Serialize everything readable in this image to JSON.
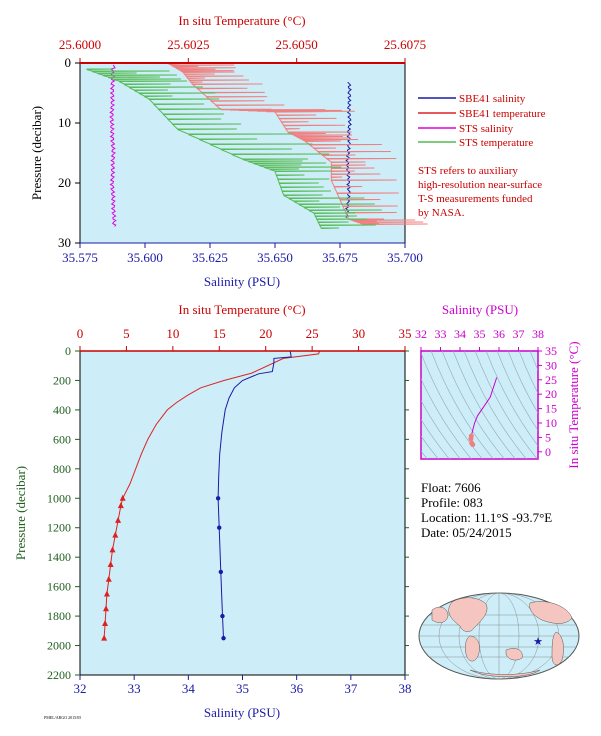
{
  "chart_data": [
    {
      "id": "top",
      "type": "line",
      "top_axis": {
        "label": "In situ Temperature (°C)",
        "ticks": [
          "25.6000",
          "25.6025",
          "25.6050",
          "25.6075"
        ],
        "range": [
          25.6,
          25.6075
        ]
      },
      "bottom_axis": {
        "label": "Salinity (PSU)",
        "ticks": [
          "35.575",
          "35.600",
          "35.625",
          "35.650",
          "35.675",
          "35.700"
        ],
        "range": [
          35.575,
          35.7
        ]
      },
      "left_axis": {
        "label": "Pressure (decibar)",
        "ticks": [
          "0",
          "10",
          "20",
          "30"
        ],
        "range": [
          0,
          30
        ],
        "inverted": true
      },
      "legend": {
        "items": [
          {
            "label": "SBE41 salinity",
            "color": "#1a1aa6"
          },
          {
            "label": "SBE41 temperature",
            "color": "#dd2222"
          },
          {
            "label": "STS salinity",
            "color": "#dd00dd"
          },
          {
            "label": "STS temperature",
            "color": "#55bb55"
          }
        ],
        "note": [
          "STS refers to auxiliary",
          "high-resolution near-surface",
          "T-S measurements funded",
          "by NASA."
        ]
      },
      "series": [
        {
          "name": "SBE41 salinity",
          "x_axis": "salinity",
          "points": [
            [
              35.6785,
              3.2
            ],
            [
              35.6787,
              5
            ],
            [
              35.6784,
              7.5
            ],
            [
              35.6788,
              10
            ],
            [
              35.6782,
              11.5
            ],
            [
              35.6786,
              13
            ],
            [
              35.6781,
              15
            ],
            [
              35.6779,
              17
            ],
            [
              35.6782,
              19
            ],
            [
              35.6784,
              21
            ],
            [
              35.6781,
              23
            ],
            [
              35.6777,
              25
            ],
            [
              35.6775,
              26
            ]
          ]
        },
        {
          "name": "SBE41 temperature",
          "x_axis": "temperature",
          "points": [
            [
              25.60205,
              0.1
            ],
            [
              25.60238,
              1.5
            ],
            [
              25.6026,
              3.5
            ],
            [
              25.60325,
              7.7
            ],
            [
              25.6045,
              8.1
            ],
            [
              25.6048,
              11.5
            ],
            [
              25.6052,
              13
            ],
            [
              25.6058,
              16.5
            ],
            [
              25.6058,
              19.5
            ],
            [
              25.6062,
              26
            ],
            [
              25.6066,
              27
            ]
          ]
        },
        {
          "name": "STS salinity",
          "x_axis": "salinity",
          "points": [
            [
              35.5885,
              0.3
            ],
            [
              35.5875,
              1
            ],
            [
              35.5875,
              5
            ],
            [
              35.5872,
              10
            ],
            [
              35.5878,
              15
            ],
            [
              35.5874,
              20
            ],
            [
              35.5879,
              24
            ],
            [
              35.5882,
              27.5
            ]
          ]
        },
        {
          "name": "STS temperature",
          "x_axis": "temperature",
          "points": [
            [
              25.60015,
              1
            ],
            [
              25.6009,
              3
            ],
            [
              25.6016,
              6
            ],
            [
              25.60225,
              11
            ],
            [
              25.60375,
              16
            ],
            [
              25.6045,
              18
            ],
            [
              25.6047,
              22
            ],
            [
              25.6054,
              25
            ],
            [
              25.6056,
              28
            ]
          ]
        }
      ]
    },
    {
      "id": "main",
      "type": "line",
      "top_axis": {
        "label": "In situ Temperature (°C)",
        "ticks": [
          "0",
          "5",
          "10",
          "15",
          "20",
          "25",
          "30",
          "35"
        ],
        "range": [
          0,
          35
        ]
      },
      "bottom_axis": {
        "label": "Salinity (PSU)",
        "ticks": [
          "32",
          "33",
          "34",
          "35",
          "36",
          "37",
          "38"
        ],
        "range": [
          32,
          38
        ]
      },
      "left_axis": {
        "label": "Pressure (decibar)",
        "ticks": [
          "0",
          "200",
          "400",
          "600",
          "800",
          "1000",
          "1200",
          "1400",
          "1600",
          "1800",
          "2000",
          "2200"
        ],
        "range": [
          0,
          2200
        ],
        "inverted": true
      },
      "series": [
        {
          "name": "Temperature",
          "x_axis": "temperature",
          "points": [
            [
              25.8,
              0
            ],
            [
              25.7,
              20
            ],
            [
              21.9,
              50
            ],
            [
              18.5,
              150
            ],
            [
              15.5,
              200
            ],
            [
              13,
              250
            ],
            [
              11.6,
              300
            ],
            [
              10.4,
              350
            ],
            [
              9.4,
              400
            ],
            [
              8.2,
              500
            ],
            [
              7.3,
              600
            ],
            [
              6.6,
              700
            ],
            [
              6,
              800
            ],
            [
              5.4,
              900
            ],
            [
              4.6,
              1000
            ],
            [
              4.4,
              1050
            ],
            [
              4.1,
              1150
            ],
            [
              3.8,
              1250
            ],
            [
              3.5,
              1350
            ],
            [
              3.3,
              1450
            ],
            [
              3.1,
              1550
            ],
            [
              2.9,
              1650
            ],
            [
              2.8,
              1750
            ],
            [
              2.7,
              1850
            ],
            [
              2.6,
              1950
            ]
          ],
          "markers_from_pressure": 1000
        },
        {
          "name": "Salinity",
          "x_axis": "salinity",
          "points": [
            [
              35.88,
              0
            ],
            [
              35.9,
              40
            ],
            [
              35.58,
              50
            ],
            [
              35.58,
              80
            ],
            [
              35.55,
              140
            ],
            [
              35.3,
              155
            ],
            [
              35.0,
              200
            ],
            [
              34.85,
              250
            ],
            [
              34.75,
              320
            ],
            [
              34.68,
              400
            ],
            [
              34.62,
              550
            ],
            [
              34.58,
              700
            ],
            [
              34.56,
              850
            ],
            [
              34.55,
              1000
            ],
            [
              34.57,
              1200
            ],
            [
              34.6,
              1500
            ],
            [
              34.63,
              1800
            ],
            [
              34.65,
              1950
            ]
          ],
          "markers_from_pressure": 1000
        }
      ]
    },
    {
      "id": "ts",
      "type": "line",
      "top_axis": {
        "label": "Salinity (PSU)",
        "ticks": [
          "32",
          "33",
          "34",
          "35",
          "36",
          "37",
          "38"
        ],
        "range": [
          32,
          38
        ]
      },
      "right_axis": {
        "label": "In situ Temperature (°C)",
        "ticks": [
          "0",
          "5",
          "10",
          "15",
          "20",
          "25",
          "30",
          "35"
        ],
        "range": [
          -2.5,
          35
        ]
      },
      "series": [
        {
          "name": "T-S",
          "points": [
            [
              35.88,
              25.8
            ],
            [
              35.55,
              19
            ],
            [
              35.2,
              15.5
            ],
            [
              34.9,
              12.5
            ],
            [
              34.75,
              10
            ],
            [
              34.65,
              7.5
            ],
            [
              34.58,
              5.5
            ],
            [
              34.56,
              4.5
            ],
            [
              34.6,
              3
            ],
            [
              34.65,
              2.5
            ]
          ]
        }
      ]
    }
  ],
  "info": {
    "float": "Float:  7606",
    "profile": "Profile:  083",
    "location": "Location:  11.1°S  -93.7°E",
    "date": "Date:  05/24/2015"
  },
  "footer": "PMEL/ARGO 2015/05"
}
